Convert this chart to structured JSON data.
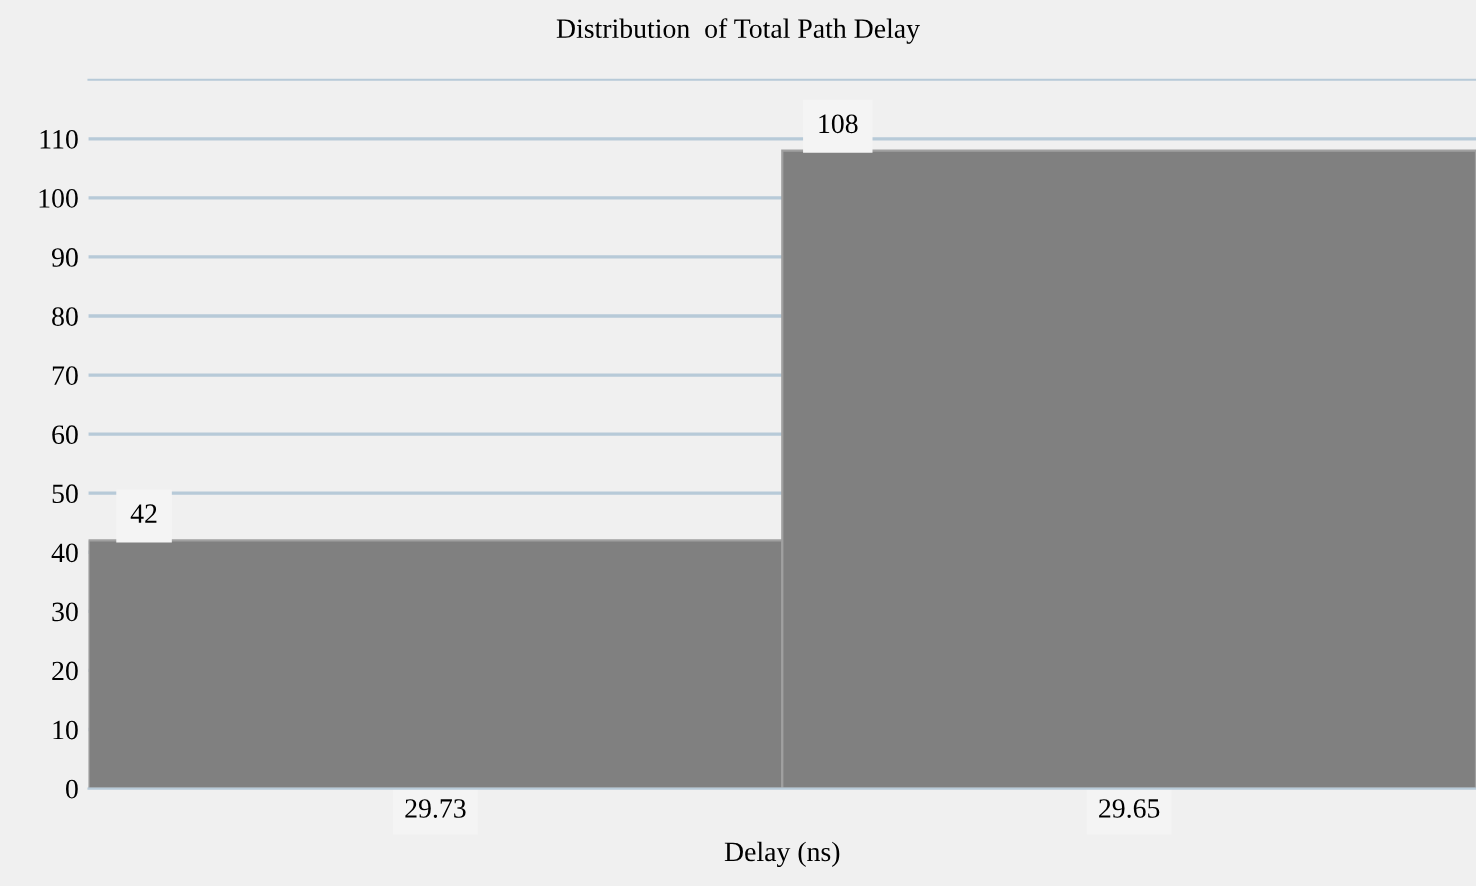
{
  "chart_data": {
    "type": "bar",
    "title": "Distribution  of Total Path Delay",
    "xlabel": "Delay (ns)",
    "categories": [
      "29.73",
      "29.65"
    ],
    "values": [
      42,
      108
    ],
    "color": "#808080",
    "ylim": [
      0,
      120
    ],
    "yticks": [
      0,
      10,
      20,
      30,
      40,
      50,
      60,
      70,
      80,
      90,
      100,
      110
    ],
    "grid": "y",
    "data_labels": true
  }
}
